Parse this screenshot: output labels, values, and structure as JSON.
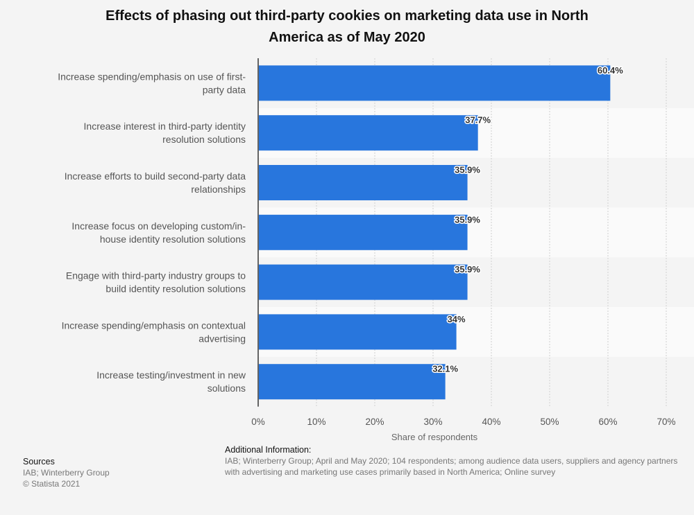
{
  "title": {
    "line1": "Effects of phasing out third-party cookies on marketing data use in North",
    "line2": "America as of May 2020"
  },
  "chart_data": {
    "type": "bar",
    "orientation": "horizontal",
    "title": "Effects of phasing out third-party cookies on marketing data use in North America as of May 2020",
    "categories": [
      [
        "Increase spending/emphasis on use of first-",
        "party data"
      ],
      [
        "Increase interest in third-party identity",
        "resolution solutions"
      ],
      [
        "Increase efforts to build second-party data",
        "relationships"
      ],
      [
        "Increase focus on developing custom/in-",
        "house identity resolution solutions"
      ],
      [
        "Engage with third-party industry groups to",
        "build identity resolution solutions"
      ],
      [
        "Increase spending/emphasis on contextual",
        "advertising"
      ],
      [
        "Increase testing/investment in new",
        "solutions"
      ]
    ],
    "values": [
      60.4,
      37.7,
      35.9,
      35.9,
      35.9,
      34,
      32.1
    ],
    "value_labels": [
      "60.4%",
      "37.7%",
      "35.9%",
      "35.9%",
      "35.9%",
      "34%",
      "32.1%"
    ],
    "xlabel": "Share of respondents",
    "xlim": [
      0,
      70
    ],
    "ticks": [
      0,
      10,
      20,
      30,
      40,
      50,
      60,
      70
    ],
    "tick_labels": [
      "0%",
      "10%",
      "20%",
      "30%",
      "40%",
      "50%",
      "60%",
      "70%"
    ],
    "grid": true,
    "bar_color": "#2876dd"
  },
  "additional_info": {
    "heading": "Additional Information:",
    "text": "IAB; Winterberry Group; April and May 2020; 104 respondents; among audience data users, suppliers and agency partners with advertising and marketing use cases primarily based in North America; Online survey"
  },
  "sources": {
    "heading": "Sources",
    "line1": "IAB; Winterberry Group",
    "line2": "© Statista 2021"
  }
}
